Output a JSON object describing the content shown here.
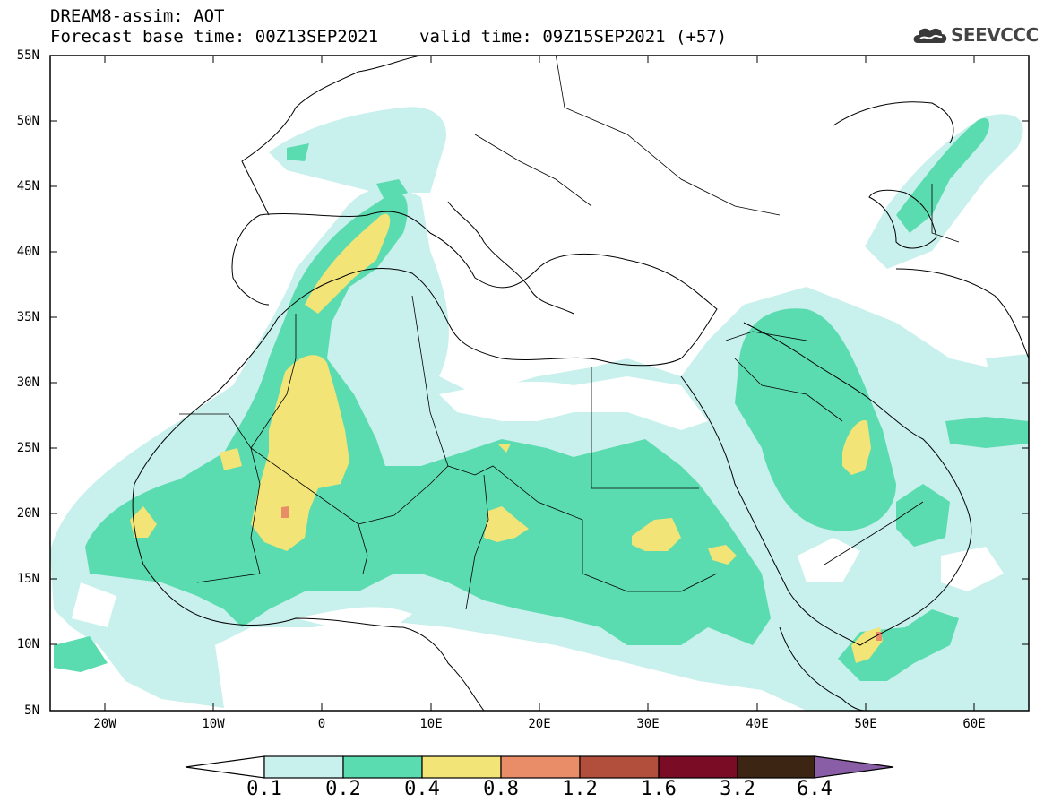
{
  "header": {
    "line1": "DREAM8-assim: AOT",
    "line2_base": "Forecast base time: 00Z13SEP2021",
    "line2_valid": "valid time: 09Z15SEP2021 (+57)"
  },
  "logo": {
    "text": "SEEVCCC",
    "icon": "cloud-logo-icon"
  },
  "map": {
    "lat_labels": [
      "55N",
      "50N",
      "45N",
      "40N",
      "35N",
      "30N",
      "25N",
      "20N",
      "15N",
      "10N",
      "5N"
    ],
    "lon_labels": [
      "20W",
      "10W",
      "0",
      "10E",
      "20E",
      "30E",
      "40E",
      "50E",
      "60E"
    ],
    "extent": {
      "lon": [
        -25,
        65
      ],
      "lat": [
        5,
        55
      ]
    }
  },
  "colorbar": {
    "labels": [
      "0.1",
      "0.2",
      "0.4",
      "0.8",
      "1.2",
      "1.6",
      "3.2",
      "6.4"
    ],
    "colors": [
      "#ffffff",
      "#c8f0ec",
      "#5bdcb0",
      "#f2e476",
      "#e98c68",
      "#b24e3c",
      "#7a0c26",
      "#3d2514",
      "#8a5ea6"
    ]
  }
}
